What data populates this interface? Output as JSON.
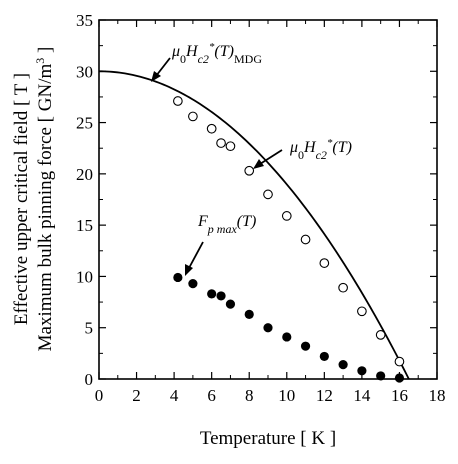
{
  "chart_data": {
    "type": "scatter",
    "xlabel": "Temperature [ K ]",
    "ylabel_primary": "Effective upper critical field [ T ]",
    "ylabel_secondary": "Maximum bulk pinning force [ GN/m",
    "ylabel_secondary_sup": "3",
    "ylabel_secondary_end": " ]",
    "xlim": [
      0,
      18
    ],
    "ylim": [
      0,
      35
    ],
    "xticks": [
      0,
      2,
      4,
      6,
      8,
      10,
      12,
      14,
      16,
      18
    ],
    "yticks": [
      0,
      5,
      10,
      15,
      20,
      25,
      30,
      35
    ],
    "xtick_labels": [
      "0",
      "2",
      "4",
      "6",
      "8",
      "10",
      "12",
      "14",
      "16",
      "18"
    ],
    "ytick_labels": [
      "0",
      "5",
      "10",
      "15",
      "20",
      "25",
      "30",
      "35"
    ],
    "series": [
      {
        "marker": "open-circle",
        "x": [
          4.2,
          5.0,
          6.0,
          6.5,
          7.0,
          8.0,
          9.0,
          10.0,
          11.0,
          12.0,
          13.0,
          14.0,
          15.0,
          16.0
        ],
        "y": [
          27.1,
          25.6,
          24.4,
          23.0,
          22.7,
          20.3,
          18.0,
          15.9,
          13.6,
          11.3,
          8.9,
          6.6,
          4.3,
          1.7
        ]
      },
      {
        "marker": "filled-circle",
        "x": [
          4.2,
          5.0,
          6.0,
          6.5,
          7.0,
          8.0,
          9.0,
          10.0,
          11.0,
          12.0,
          13.0,
          14.0,
          15.0,
          16.0
        ],
        "y": [
          9.9,
          9.3,
          8.3,
          8.1,
          7.3,
          6.3,
          5.0,
          4.1,
          3.2,
          2.2,
          1.4,
          0.8,
          0.3,
          0.1
        ]
      },
      {
        "marker": "line",
        "fit": "mu0Hc2*(0) * (1 - (T/Tc)^2)",
        "params": {
          "Hc2_0": 30.0,
          "Tc": 16.5
        }
      }
    ],
    "annotations": [
      {
        "base": "μ",
        "sub1": "0",
        "mid": "H",
        "sub2": "c2",
        "sup": "*",
        "tail": "(T)",
        "sub3": "MDG"
      },
      {
        "base": "μ",
        "sub1": "0",
        "mid": "H",
        "sub2": "c2",
        "sup": "*",
        "tail": "(T)"
      },
      {
        "base": "F",
        "sub1": "p max",
        "tail": "(T)"
      }
    ]
  }
}
